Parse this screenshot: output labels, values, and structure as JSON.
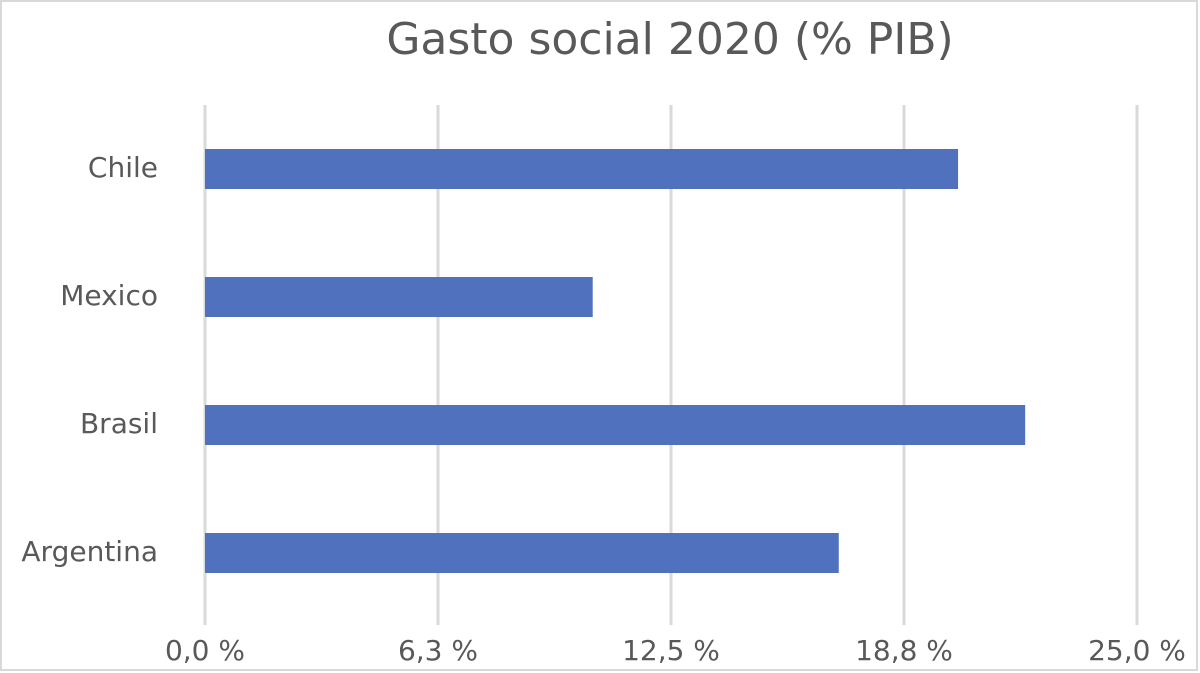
{
  "chart_data": {
    "type": "hbar",
    "title": "Gasto social 2020 (% PIB)",
    "categories": [
      "Chile",
      "Mexico",
      "Brasil",
      "Argentina"
    ],
    "values": [
      20.2,
      10.4,
      22.0,
      17.0
    ],
    "color": "#4f71be",
    "xlim": [
      0,
      25
    ],
    "xticks": [
      {
        "value": 0,
        "label": "0,0 %"
      },
      {
        "value": 6.25,
        "label": "6,3 %"
      },
      {
        "value": 12.5,
        "label": "12,5 %"
      },
      {
        "value": 18.75,
        "label": "18,8 %"
      },
      {
        "value": 25,
        "label": "25,0 %"
      }
    ],
    "grid": true
  }
}
